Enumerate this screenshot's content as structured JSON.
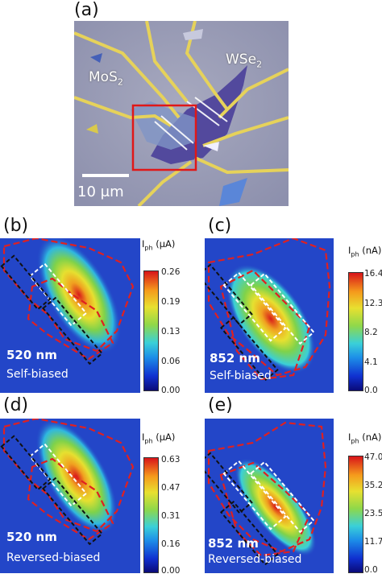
{
  "panels": {
    "a": {
      "label": "(a)",
      "mos2": "MoS",
      "mos2_sub": "2",
      "wse2": "WSe",
      "wse2_sub": "2",
      "scale_bar": "10 μm"
    },
    "b": {
      "label": "(b)",
      "wavelength": "520 nm",
      "condition": "Self-biased",
      "unit": "(μA)",
      "ticks": [
        "0.26",
        "0.19",
        "0.13",
        "0.06",
        "0.00"
      ]
    },
    "c": {
      "label": "(c)",
      "wavelength": "852 nm",
      "condition": "Self-biased",
      "unit": "(nA)",
      "ticks": [
        "16.4",
        "12.3",
        "8.2",
        "4.1",
        "0.0"
      ]
    },
    "d": {
      "label": "(d)",
      "wavelength": "520 nm",
      "condition": "Reversed-biased",
      "unit": "(μA)",
      "ticks": [
        "0.63",
        "0.47",
        "0.31",
        "0.16",
        "0.00"
      ]
    },
    "e": {
      "label": "(e)",
      "wavelength": "852 nm",
      "condition": "Reversed-biased",
      "unit": "(nA)",
      "ticks": [
        "47.0",
        "35.2",
        "23.5",
        "11.7",
        "0.0"
      ]
    }
  },
  "colorbar_symbol": "I",
  "colorbar_sub": "ph",
  "colors": {
    "background_map": "#2346c8",
    "boundary": "#e02020",
    "electrode_wse2": "#ffffff",
    "electrode_mos2": "#000000",
    "highlight_box": "#e01818"
  }
}
